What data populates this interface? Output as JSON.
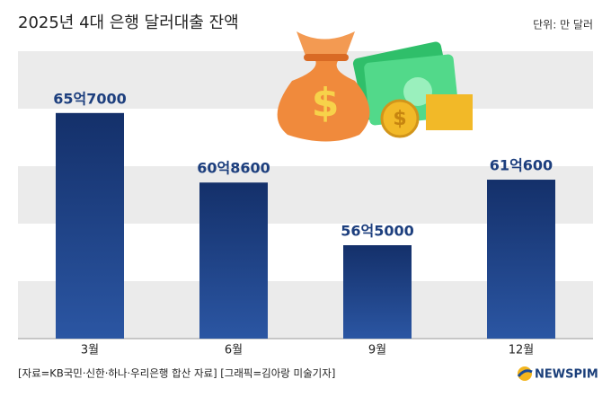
{
  "chart_data": {
    "type": "bar",
    "title": "2025년 4대 은행 달러대출 잔액",
    "unit": "단위: 만 달러",
    "source": "[자료=KB국민·신한·하나·우리은행 합산 자료] [그래픽=김아랑 미술기자]",
    "logo": "NEWSPIM",
    "categories": [
      "3월",
      "6월",
      "9월",
      "12월"
    ],
    "values": [
      657000,
      608600,
      565000,
      610600
    ],
    "value_labels": [
      "65억7000",
      "60억8600",
      "56억5000",
      "61억600"
    ],
    "color": "#1d3f82",
    "ylim": [
      500000,
      700000
    ]
  }
}
